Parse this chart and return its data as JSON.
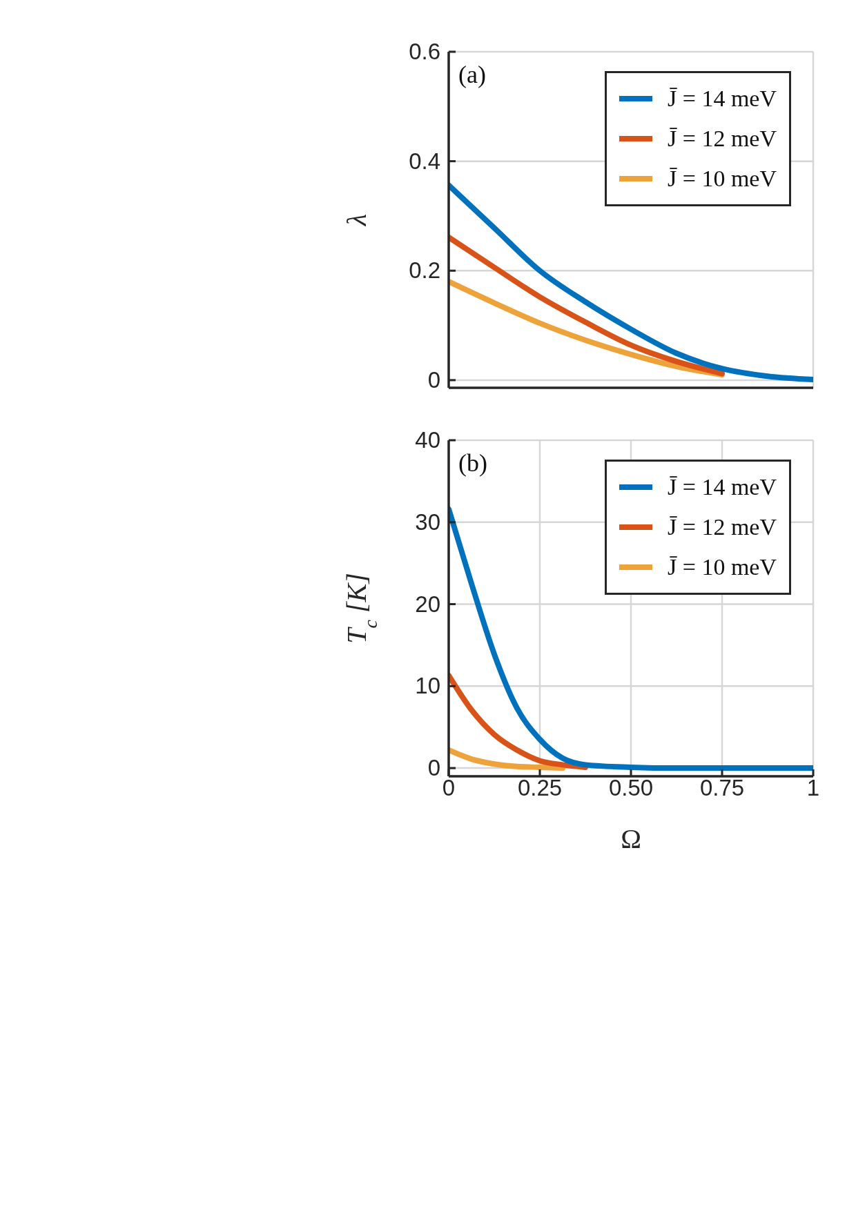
{
  "chart_data": [
    {
      "type": "line",
      "annotations": [
        "(a)"
      ],
      "ylabel": "λ",
      "x": [
        0,
        0.125,
        0.25,
        0.375,
        0.5,
        0.625,
        0.75,
        0.875,
        1
      ],
      "series": [
        {
          "name": "J̄ = 14 meV",
          "color": "#0072bd",
          "values": [
            0.356,
            0.278,
            0.2,
            0.143,
            0.093,
            0.049,
            0.021,
            0.007,
            0.001
          ]
        },
        {
          "name": "J̄ = 12 meV",
          "color": "#d95319",
          "values": [
            0.261,
            0.206,
            0.152,
            0.106,
            0.064,
            0.034,
            0.012,
            null,
            null
          ]
        },
        {
          "name": "J̄ = 10 meV",
          "color": "#eda23a",
          "values": [
            0.18,
            0.141,
            0.104,
            0.073,
            0.047,
            0.025,
            0.01,
            null,
            null
          ]
        }
      ],
      "xlim": [
        0,
        1
      ],
      "xticks": [
        0,
        0.25,
        0.5,
        0.75,
        1
      ],
      "ylim": [
        -0.014,
        0.6
      ],
      "yticks": [
        0,
        0.2,
        0.4,
        0.6
      ],
      "tick_labels": "y",
      "grid": true,
      "legend": "top right",
      "line_style": "solid",
      "marker": "none"
    },
    {
      "type": "line",
      "annotations": [
        "(b)"
      ],
      "ylabel": "T$_{c}$ [K]",
      "xlabel": "Ω",
      "x": [
        0,
        0.0625,
        0.125,
        0.1875,
        0.25,
        0.3125,
        0.375,
        0.5,
        0.625,
        0.75,
        0.875,
        1
      ],
      "series": [
        {
          "name": "J̄ = 14 meV",
          "color": "#0072bd",
          "values": [
            31.6,
            22.5,
            13.9,
            7.3,
            3.5,
            1.2,
            0.4,
            0.1,
            0,
            0,
            0,
            0
          ]
        },
        {
          "name": "J̄ = 12 meV",
          "color": "#d95319",
          "values": [
            11.3,
            7.1,
            4.1,
            2.2,
            0.9,
            0.4,
            0.1,
            null,
            null,
            null,
            null,
            null
          ]
        },
        {
          "name": "J̄ = 10 meV",
          "color": "#eda23a",
          "values": [
            2.2,
            1.1,
            0.5,
            0.2,
            0.1,
            0,
            null,
            null,
            null,
            null,
            null,
            null
          ]
        }
      ],
      "xlim": [
        0,
        1
      ],
      "xticks": [
        0,
        0.25,
        {
          "value": 0.5,
          "label": "0.50"
        },
        0.75,
        1
      ],
      "ylim": [
        -1,
        40
      ],
      "yticks": [
        0,
        10,
        20,
        30,
        40
      ],
      "grid": true,
      "legend": "top right",
      "line_style": "solid",
      "marker": "none"
    }
  ]
}
